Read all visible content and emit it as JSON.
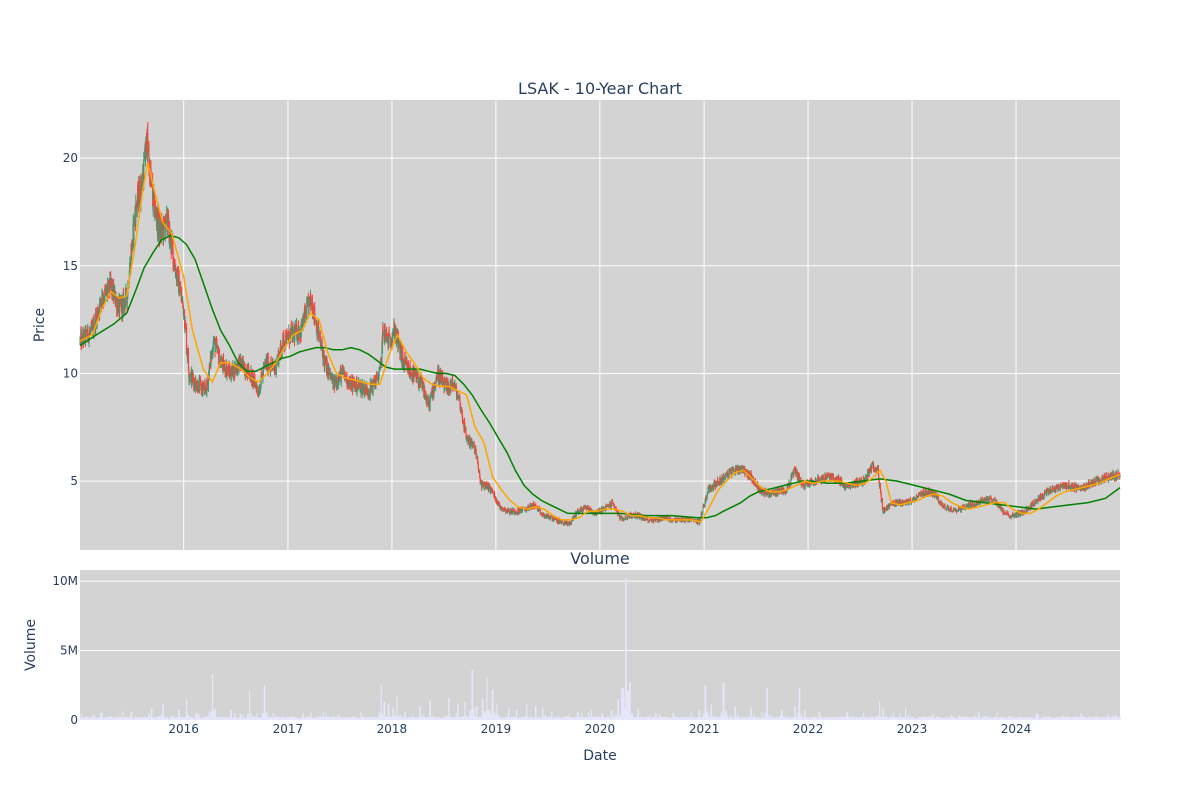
{
  "chart_data": [
    {
      "type": "candlestick",
      "title": "LSAK - 10-Year Chart",
      "ylabel": "Price",
      "ylim": [
        1.8,
        22.7
      ],
      "xlim": [
        "2015-01-02",
        "2024-12-31"
      ],
      "yticks": [
        5,
        10,
        15,
        20
      ],
      "xticks": [
        "2016-01-01",
        "2017-01-01",
        "2018-01-01",
        "2019-01-01",
        "2020-01-01",
        "2021-01-01",
        "2022-01-01",
        "2023-01-01",
        "2024-01-01"
      ],
      "xtick_labels": [
        "2016",
        "2017",
        "2018",
        "2019",
        "2020",
        "2021",
        "2022",
        "2023",
        "2024"
      ],
      "grid": true,
      "background": "#d3d3d3",
      "colors": {
        "up": "#3d9970",
        "down": "#ff4136",
        "ma_short": "orange",
        "ma_long": "green"
      },
      "price_path": {
        "x": [
          "2015-01-02",
          "2015-02-15",
          "2015-03-20",
          "2015-04-20",
          "2015-05-20",
          "2015-06-15",
          "2015-07-15",
          "2015-08-10",
          "2015-08-25",
          "2015-09-15",
          "2015-10-10",
          "2015-11-05",
          "2015-12-01",
          "2016-01-01",
          "2016-01-20",
          "2016-02-15",
          "2016-03-20",
          "2016-04-15",
          "2016-05-10",
          "2016-06-15",
          "2016-07-15",
          "2016-08-20",
          "2016-09-20",
          "2016-10-15",
          "2016-11-15",
          "2016-12-15",
          "2017-01-15",
          "2017-02-15",
          "2017-03-10",
          "2017-03-25",
          "2017-04-15",
          "2017-05-10",
          "2017-06-10",
          "2017-07-10",
          "2017-08-10",
          "2017-09-10",
          "2017-10-15",
          "2017-11-20",
          "2017-12-01",
          "2017-12-20",
          "2018-01-10",
          "2018-02-10",
          "2018-03-10",
          "2018-04-15",
          "2018-05-10",
          "2018-06-10",
          "2018-07-10",
          "2018-08-05",
          "2018-08-25",
          "2018-09-20",
          "2018-10-20",
          "2018-11-10",
          "2018-12-01",
          "2018-12-20",
          "2019-01-15",
          "2019-02-15",
          "2019-03-15",
          "2019-04-15",
          "2019-05-15",
          "2019-06-15",
          "2019-07-15",
          "2019-08-15",
          "2019-09-15",
          "2019-10-15",
          "2019-11-15",
          "2019-12-15",
          "2020-01-15",
          "2020-02-15",
          "2020-03-15",
          "2020-04-15",
          "2020-05-15",
          "2020-06-15",
          "2020-07-15",
          "2020-08-15",
          "2020-09-15",
          "2020-10-15",
          "2020-11-15",
          "2020-12-15",
          "2021-01-15",
          "2021-02-15",
          "2021-03-15",
          "2021-04-15",
          "2021-05-15",
          "2021-06-15",
          "2021-07-15",
          "2021-08-15",
          "2021-09-15",
          "2021-10-15",
          "2021-10-25",
          "2021-11-15",
          "2021-12-15",
          "2022-01-15",
          "2022-02-15",
          "2022-03-15",
          "2022-04-15",
          "2022-05-15",
          "2022-06-15",
          "2022-07-15",
          "2022-08-10",
          "2022-09-01",
          "2022-09-20",
          "2022-10-20",
          "2022-11-20",
          "2022-12-20",
          "2023-01-20",
          "2023-02-20",
          "2023-03-20",
          "2023-04-20",
          "2023-05-20",
          "2023-06-20",
          "2023-07-20",
          "2023-08-20",
          "2023-09-20",
          "2023-10-20",
          "2023-11-20",
          "2023-12-20",
          "2024-01-20",
          "2024-02-20",
          "2024-03-20",
          "2024-04-20",
          "2024-05-20",
          "2024-06-20",
          "2024-07-20",
          "2024-08-20",
          "2024-09-20",
          "2024-10-20",
          "2024-11-20",
          "2024-12-31"
        ],
        "y": [
          11.5,
          12.0,
          13.5,
          14.0,
          13.0,
          13.5,
          17.5,
          19.0,
          20.8,
          18.0,
          16.5,
          17.0,
          15.0,
          13.0,
          10.0,
          9.5,
          9.2,
          11.5,
          10.5,
          10.0,
          10.5,
          10.0,
          9.2,
          10.5,
          10.2,
          11.5,
          11.8,
          12.0,
          13.0,
          13.4,
          12.0,
          10.5,
          9.5,
          10.0,
          9.5,
          9.4,
          9.2,
          10.0,
          12.0,
          11.5,
          12.0,
          10.5,
          10.0,
          9.5,
          8.5,
          10.0,
          9.3,
          9.5,
          8.8,
          7.0,
          6.5,
          4.8,
          4.8,
          4.5,
          3.8,
          3.6,
          3.6,
          3.7,
          3.9,
          3.4,
          3.3,
          3.1,
          3.0,
          3.6,
          3.8,
          3.5,
          3.7,
          4.0,
          3.2,
          3.4,
          3.4,
          3.2,
          3.2,
          3.3,
          3.2,
          3.2,
          3.2,
          3.1,
          4.6,
          4.9,
          5.2,
          5.5,
          5.6,
          5.2,
          4.6,
          4.4,
          4.5,
          4.6,
          4.8,
          5.5,
          4.8,
          5.0,
          5.1,
          5.2,
          5.1,
          4.7,
          4.9,
          5.0,
          5.6,
          5.7,
          3.6,
          3.9,
          4.0,
          4.0,
          4.3,
          4.5,
          4.4,
          3.8,
          3.7,
          3.7,
          3.9,
          4.0,
          4.2,
          4.1,
          3.5,
          3.4,
          3.5,
          3.8,
          4.2,
          4.5,
          4.7,
          4.8,
          4.7,
          4.7,
          4.9,
          5.0,
          5.2,
          5.3
        ]
      },
      "ma_short": {
        "x": [
          "2015-01-02",
          "2015-02-15",
          "2015-03-20",
          "2015-04-20",
          "2015-05-20",
          "2015-06-15",
          "2015-07-15",
          "2015-08-10",
          "2015-08-28",
          "2015-09-20",
          "2015-10-20",
          "2015-11-20",
          "2016-01-01",
          "2016-02-01",
          "2016-03-10",
          "2016-04-10",
          "2016-05-10",
          "2016-06-10",
          "2016-07-20",
          "2016-08-20",
          "2016-09-20",
          "2016-10-20",
          "2016-11-20",
          "2016-12-20",
          "2017-01-20",
          "2017-02-20",
          "2017-03-20",
          "2017-04-20",
          "2017-05-20",
          "2017-06-20",
          "2017-07-20",
          "2017-08-20",
          "2017-09-20",
          "2017-10-20",
          "2017-11-20",
          "2017-12-20",
          "2018-01-20",
          "2018-02-20",
          "2018-03-20",
          "2018-04-20",
          "2018-05-20",
          "2018-06-20",
          "2018-07-20",
          "2018-08-20",
          "2018-09-20",
          "2018-10-20",
          "2018-11-20",
          "2018-12-20",
          "2019-01-20",
          "2019-02-20",
          "2019-03-20",
          "2019-04-20",
          "2019-05-20",
          "2019-06-20",
          "2019-07-20",
          "2019-08-20",
          "2019-09-20",
          "2019-10-20",
          "2019-11-20",
          "2019-12-20",
          "2020-01-20",
          "2020-02-20",
          "2020-03-20",
          "2020-04-20",
          "2020-05-20",
          "2020-06-20",
          "2020-07-20",
          "2020-08-20",
          "2020-09-20",
          "2020-10-20",
          "2020-11-20",
          "2020-12-20",
          "2021-01-20",
          "2021-02-20",
          "2021-03-20",
          "2021-04-20",
          "2021-05-20",
          "2021-06-20",
          "2021-07-20",
          "2021-08-20",
          "2021-09-20",
          "2021-10-20",
          "2021-11-20",
          "2021-12-20",
          "2022-01-20",
          "2022-02-20",
          "2022-03-20",
          "2022-04-20",
          "2022-05-20",
          "2022-06-20",
          "2022-07-20",
          "2022-08-20",
          "2022-09-10",
          "2022-10-01",
          "2022-10-20",
          "2022-11-20",
          "2022-12-20",
          "2023-01-20",
          "2023-02-20",
          "2023-03-20",
          "2023-04-20",
          "2023-05-20",
          "2023-06-20",
          "2023-07-20",
          "2023-08-20",
          "2023-09-20",
          "2023-10-20",
          "2023-11-20",
          "2023-12-20",
          "2024-01-20",
          "2024-02-20",
          "2024-03-20",
          "2024-04-20",
          "2024-05-20",
          "2024-06-20",
          "2024-07-20",
          "2024-08-20",
          "2024-09-20",
          "2024-10-20",
          "2024-11-20",
          "2024-12-31"
        ],
        "y": [
          11.5,
          11.8,
          13.0,
          13.8,
          13.5,
          13.6,
          16.0,
          18.5,
          19.8,
          18.5,
          17.0,
          16.5,
          14.5,
          12.0,
          10.2,
          9.6,
          10.5,
          10.5,
          10.2,
          9.8,
          9.6,
          10.0,
          10.5,
          11.2,
          11.8,
          12.0,
          12.8,
          12.5,
          11.0,
          10.0,
          9.8,
          9.7,
          9.6,
          9.5,
          9.5,
          10.8,
          11.8,
          11.0,
          10.5,
          9.8,
          9.5,
          9.4,
          9.4,
          9.2,
          9.0,
          7.5,
          6.8,
          5.2,
          4.6,
          4.1,
          3.8,
          3.7,
          3.8,
          3.7,
          3.4,
          3.2,
          3.2,
          3.3,
          3.6,
          3.6,
          3.7,
          3.7,
          3.6,
          3.4,
          3.4,
          3.3,
          3.3,
          3.2,
          3.2,
          3.2,
          3.2,
          3.1,
          3.8,
          4.6,
          5.0,
          5.4,
          5.5,
          5.1,
          4.7,
          4.5,
          4.5,
          4.6,
          4.8,
          5.0,
          4.9,
          5.0,
          5.0,
          5.0,
          4.9,
          4.8,
          4.9,
          5.2,
          5.5,
          5.0,
          4.0,
          3.9,
          4.0,
          4.1,
          4.3,
          4.4,
          4.3,
          4.0,
          3.8,
          3.7,
          3.8,
          3.9,
          4.0,
          4.0,
          3.7,
          3.5,
          3.5,
          3.7,
          4.0,
          4.3,
          4.5,
          4.6,
          4.7,
          4.8,
          4.9,
          5.1,
          5.3
        ]
      },
      "ma_long": {
        "x": [
          "2015-01-02",
          "2015-03-01",
          "2015-05-01",
          "2015-06-15",
          "2015-07-15",
          "2015-08-15",
          "2015-09-15",
          "2015-10-15",
          "2015-11-15",
          "2015-12-15",
          "2016-01-10",
          "2016-02-10",
          "2016-03-10",
          "2016-04-10",
          "2016-05-10",
          "2016-06-10",
          "2016-07-10",
          "2016-08-10",
          "2016-09-10",
          "2016-10-10",
          "2016-11-10",
          "2016-12-10",
          "2017-01-10",
          "2017-02-10",
          "2017-03-10",
          "2017-04-10",
          "2017-05-10",
          "2017-06-10",
          "2017-07-10",
          "2017-08-10",
          "2017-09-10",
          "2017-10-10",
          "2017-11-10",
          "2017-12-10",
          "2018-01-10",
          "2018-02-10",
          "2018-03-10",
          "2018-04-10",
          "2018-05-10",
          "2018-06-10",
          "2018-07-10",
          "2018-08-10",
          "2018-09-10",
          "2018-10-10",
          "2018-11-10",
          "2018-12-10",
          "2019-01-10",
          "2019-02-10",
          "2019-03-10",
          "2019-04-10",
          "2019-05-10",
          "2019-06-10",
          "2019-07-10",
          "2019-08-10",
          "2019-09-10",
          "2019-10-10",
          "2019-11-10",
          "2019-12-10",
          "2020-01-10",
          "2020-03-10",
          "2020-06-10",
          "2020-09-10",
          "2020-12-10",
          "2021-01-10",
          "2021-02-10",
          "2021-03-10",
          "2021-04-10",
          "2021-05-10",
          "2021-06-10",
          "2021-07-10",
          "2021-08-10",
          "2021-09-10",
          "2021-10-10",
          "2021-11-10",
          "2021-12-10",
          "2022-01-10",
          "2022-03-10",
          "2022-05-10",
          "2022-07-10",
          "2022-09-10",
          "2022-11-10",
          "2023-01-10",
          "2023-03-10",
          "2023-05-10",
          "2023-07-10",
          "2023-09-10",
          "2023-11-10",
          "2024-01-10",
          "2024-03-10",
          "2024-05-10",
          "2024-07-10",
          "2024-09-10",
          "2024-11-10",
          "2024-12-31"
        ],
        "y": [
          11.3,
          11.8,
          12.3,
          12.8,
          13.8,
          14.9,
          15.6,
          16.2,
          16.4,
          16.3,
          16.0,
          15.3,
          14.2,
          13.0,
          12.0,
          11.3,
          10.5,
          10.1,
          10.1,
          10.3,
          10.5,
          10.7,
          10.8,
          11.0,
          11.1,
          11.2,
          11.2,
          11.1,
          11.1,
          11.2,
          11.1,
          10.9,
          10.6,
          10.3,
          10.2,
          10.2,
          10.2,
          10.2,
          10.1,
          10.0,
          10.0,
          9.9,
          9.5,
          9.0,
          8.3,
          7.7,
          7.0,
          6.3,
          5.5,
          4.8,
          4.4,
          4.1,
          3.9,
          3.7,
          3.5,
          3.5,
          3.5,
          3.5,
          3.5,
          3.5,
          3.4,
          3.4,
          3.3,
          3.3,
          3.4,
          3.6,
          3.8,
          4.0,
          4.3,
          4.5,
          4.6,
          4.7,
          4.8,
          4.9,
          5.0,
          5.0,
          4.9,
          4.9,
          5.0,
          5.1,
          5.0,
          4.8,
          4.6,
          4.4,
          4.1,
          4.0,
          3.9,
          3.8,
          3.7,
          3.8,
          3.9,
          4.0,
          4.2,
          4.7
        ]
      }
    },
    {
      "type": "bar",
      "title": "Volume",
      "xlabel": "Date",
      "ylabel": "Volume",
      "ylim": [
        0,
        10.8
      ],
      "yticks": [
        0,
        5,
        10
      ],
      "ytick_labels": [
        "0",
        "5M",
        "10M"
      ],
      "unit": "millions",
      "color": "#e6e6fa",
      "spikes": {
        "x": [
          "2015-03-15",
          "2015-07-01",
          "2015-09-10",
          "2015-10-20",
          "2015-12-15",
          "2016-01-10",
          "2016-04-10",
          "2016-06-15",
          "2016-08-20",
          "2016-10-10",
          "2017-01-15",
          "2017-06-10",
          "2017-11-25",
          "2017-12-05",
          "2017-12-20",
          "2018-01-05",
          "2018-01-20",
          "2018-02-15",
          "2018-04-10",
          "2018-05-15",
          "2018-07-20",
          "2018-08-20",
          "2018-09-15",
          "2018-10-10",
          "2018-10-25",
          "2018-11-15",
          "2018-12-01",
          "2018-12-20",
          "2019-01-05",
          "2019-02-15",
          "2019-03-15",
          "2019-04-20",
          "2019-05-20",
          "2019-06-15",
          "2019-07-15",
          "2019-09-15",
          "2019-10-15",
          "2019-12-01",
          "2020-01-10",
          "2020-02-10",
          "2020-03-05",
          "2020-03-18",
          "2020-04-01",
          "2020-04-15",
          "2020-05-15",
          "2020-07-15",
          "2020-09-15",
          "2020-11-15",
          "2020-12-15",
          "2021-01-05",
          "2021-01-25",
          "2021-03-10",
          "2021-04-20",
          "2021-06-15",
          "2021-08-10",
          "2021-10-01",
          "2021-11-15",
          "2021-12-01",
          "2021-12-20",
          "2022-02-10",
          "2022-05-15",
          "2022-07-15",
          "2022-09-10",
          "2022-09-20",
          "2022-12-10",
          "2023-03-15",
          "2023-06-15",
          "2023-09-15",
          "2023-12-15",
          "2024-03-15",
          "2024-06-15",
          "2024-09-15",
          "2024-12-15"
        ],
        "y": [
          0.5,
          0.6,
          0.8,
          1.1,
          0.7,
          1.5,
          3.3,
          0.7,
          2.1,
          2.5,
          0.3,
          0.3,
          2.5,
          1.3,
          1.1,
          0.9,
          1.7,
          0.6,
          1.0,
          1.4,
          1.6,
          1.2,
          1.3,
          3.6,
          1.0,
          1.5,
          3.0,
          2.2,
          1.2,
          0.8,
          0.7,
          1.2,
          1.0,
          0.9,
          0.6,
          0.5,
          0.6,
          0.7,
          0.5,
          0.7,
          1.5,
          2.3,
          10.2,
          2.7,
          0.8,
          0.5,
          0.5,
          0.6,
          0.7,
          2.5,
          1.1,
          2.7,
          1.0,
          0.9,
          2.3,
          0.7,
          1.0,
          2.3,
          0.7,
          0.6,
          0.6,
          0.5,
          1.3,
          0.8,
          0.9,
          0.4,
          0.3,
          0.3,
          0.3,
          0.3,
          0.3,
          0.3,
          0.3
        ]
      }
    }
  ]
}
